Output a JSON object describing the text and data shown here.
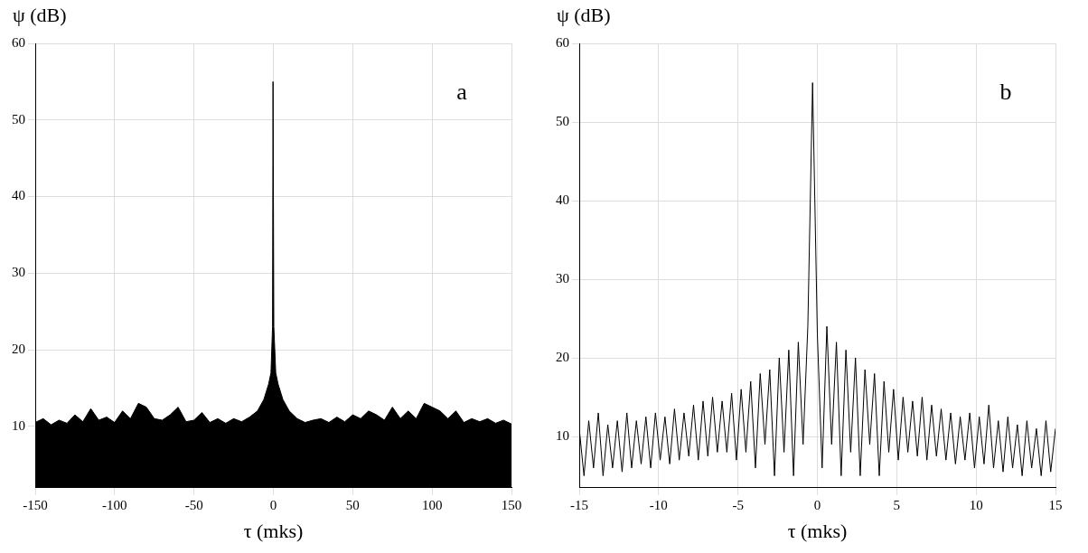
{
  "chart_data": [
    {
      "type": "area",
      "xlabel": "τ (mks)",
      "ylabel": "ψ (dB)",
      "annotations": [
        "a"
      ],
      "color": "#000000",
      "grid": true,
      "xlim": [
        -150,
        150
      ],
      "xticks": [
        -150,
        -100,
        -50,
        0,
        50,
        100,
        150
      ],
      "ylim": [
        2,
        60
      ],
      "yticks": [
        10,
        20,
        30,
        40,
        50,
        60
      ],
      "x": [
        -150,
        -145,
        -140,
        -135,
        -130,
        -125,
        -120,
        -115,
        -110,
        -105,
        -100,
        -95,
        -90,
        -85,
        -80,
        -75,
        -70,
        -65,
        -60,
        -55,
        -50,
        -45,
        -40,
        -35,
        -30,
        -25,
        -20,
        -15,
        -10,
        -6,
        -3,
        -1.5,
        -0.5,
        -0.2,
        0.3,
        1.5,
        3,
        6,
        10,
        15,
        20,
        25,
        30,
        35,
        40,
        45,
        50,
        55,
        60,
        65,
        70,
        75,
        80,
        85,
        90,
        95,
        100,
        105,
        110,
        115,
        120,
        125,
        130,
        135,
        140,
        145,
        150
      ],
      "values": [
        10.5,
        11,
        10.2,
        10.8,
        10.4,
        11.5,
        10.6,
        12.3,
        10.8,
        11.2,
        10.5,
        12,
        11,
        13,
        12.5,
        11,
        10.8,
        11.5,
        12.5,
        10.6,
        10.8,
        11.8,
        10.5,
        11,
        10.4,
        11,
        10.6,
        11.2,
        12,
        13.5,
        15.5,
        17,
        23,
        55,
        23,
        17,
        15.5,
        13.5,
        12,
        11,
        10.5,
        10.8,
        11,
        10.5,
        11.2,
        10.6,
        11.5,
        11,
        12,
        11.5,
        10.8,
        12.5,
        11,
        12,
        11,
        13,
        12.5,
        12,
        11,
        12,
        10.5,
        11,
        10.6,
        11,
        10.4,
        10.8,
        10.3
      ]
    },
    {
      "type": "line",
      "xlabel": "τ (mks)",
      "ylabel": "ψ (dB)",
      "annotations": [
        "b"
      ],
      "color": "#000000",
      "grid": true,
      "xlim": [
        -15,
        15
      ],
      "xticks": [
        -15,
        -10,
        -5,
        0,
        5,
        10,
        15
      ],
      "ylim": [
        3.5,
        60
      ],
      "yticks": [
        10,
        20,
        30,
        40,
        50,
        60
      ],
      "x": [
        -15,
        -14.7,
        -14.4,
        -14.1,
        -13.8,
        -13.5,
        -13.2,
        -12.9,
        -12.6,
        -12.3,
        -12,
        -11.7,
        -11.4,
        -11.1,
        -10.8,
        -10.5,
        -10.2,
        -9.9,
        -9.6,
        -9.3,
        -9,
        -8.7,
        -8.4,
        -8.1,
        -7.8,
        -7.5,
        -7.2,
        -6.9,
        -6.6,
        -6.3,
        -6,
        -5.7,
        -5.4,
        -5.1,
        -4.8,
        -4.5,
        -4.2,
        -3.9,
        -3.6,
        -3.3,
        -3,
        -2.7,
        -2.4,
        -2.1,
        -1.8,
        -1.5,
        -1.2,
        -0.9,
        -0.6,
        -0.3,
        0,
        0.3,
        0.6,
        0.9,
        1.2,
        1.5,
        1.8,
        2.1,
        2.4,
        2.7,
        3,
        3.3,
        3.6,
        3.9,
        4.2,
        4.5,
        4.8,
        5.1,
        5.4,
        5.7,
        6,
        6.3,
        6.6,
        6.9,
        7.2,
        7.5,
        7.8,
        8.1,
        8.4,
        8.7,
        9,
        9.3,
        9.6,
        9.9,
        10.2,
        10.5,
        10.8,
        11.1,
        11.4,
        11.7,
        12,
        12.3,
        12.6,
        12.9,
        13.2,
        13.5,
        13.8,
        14.1,
        14.4,
        14.7,
        15
      ],
      "values": [
        11,
        5,
        12,
        6,
        13,
        5,
        11.5,
        6,
        12,
        5.5,
        13,
        6,
        12,
        6.5,
        12.5,
        6,
        13,
        7,
        12.5,
        6.5,
        13.5,
        7,
        13,
        7.5,
        14,
        7,
        14.5,
        7.5,
        15,
        8,
        14.5,
        8,
        15.5,
        7,
        16,
        8,
        17,
        6,
        18,
        9,
        18.5,
        5,
        20,
        8,
        21,
        5,
        22,
        9,
        24,
        55,
        23,
        6,
        24,
        9,
        22,
        5,
        21,
        8,
        20,
        5,
        18.5,
        9,
        18,
        5,
        17,
        8,
        16,
        7,
        15,
        8,
        14.5,
        7.5,
        15,
        7,
        14,
        7.5,
        13.5,
        7,
        13,
        6.5,
        12.5,
        7,
        13,
        6,
        12.5,
        6.5,
        14,
        6,
        12,
        5.5,
        12.5,
        6,
        11.5,
        5,
        12,
        6,
        11,
        5,
        12,
        5.5,
        11
      ]
    }
  ]
}
